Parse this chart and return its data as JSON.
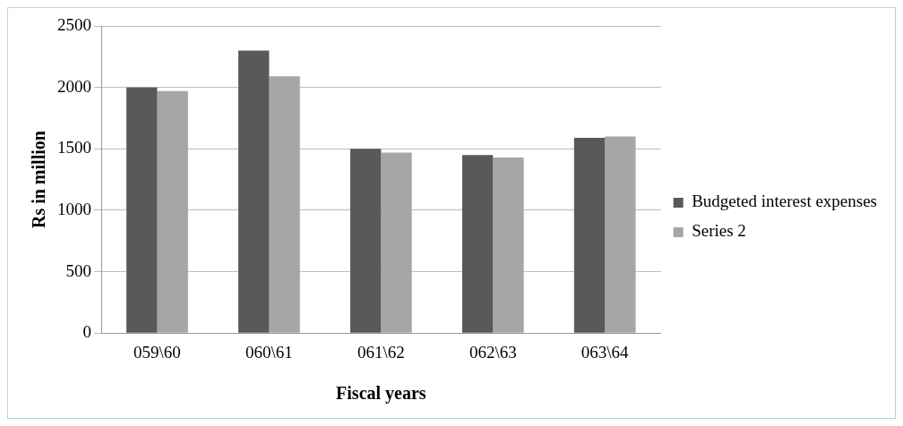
{
  "chart_data": {
    "type": "bar",
    "xlabel": "Fiscal years",
    "ylabel": "Rs in million",
    "categories": [
      "059\\60",
      "060\\61",
      "061\\62",
      "062\\63",
      "063\\64"
    ],
    "series": [
      {
        "name": "Budgeted interest expenses",
        "color": "#595959",
        "values": [
          2000,
          2300,
          1500,
          1450,
          1590
        ]
      },
      {
        "name": "Series 2",
        "color": "#a6a6a6",
        "values": [
          1970,
          2090,
          1470,
          1430,
          1600
        ]
      }
    ],
    "ylim": [
      0,
      2500
    ],
    "yticks": [
      0,
      500,
      1000,
      1500,
      2000,
      2500
    ],
    "grid": "y",
    "legend": "right"
  }
}
